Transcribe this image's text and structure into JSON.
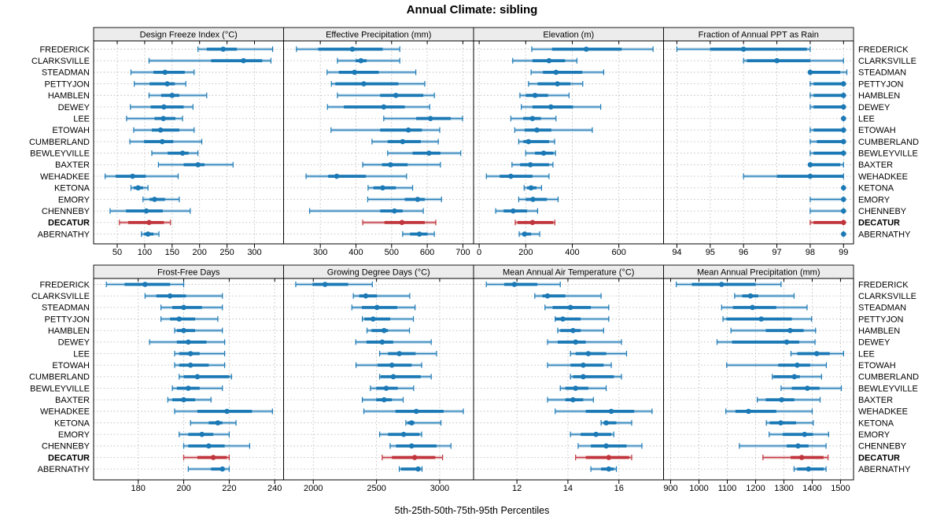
{
  "title": "Annual Climate: sibling",
  "caption": "5th-25th-50th-75th-95th Percentiles",
  "colors": {
    "series_blue": "#1b79b5",
    "series_blue_light": "rgba(27,121,181,0.33)",
    "highlight_red": "#c0353c",
    "highlight_red_light": "rgba(192,53,60,0.33)",
    "strip_bg": "#ececec",
    "panel_border": "#000000",
    "grid": "#bcbcbc",
    "text": "#000000"
  },
  "chart_data": {
    "type": "scatter",
    "subtype": "dot-and-whisker percentile plot (lattice style), 2 rows x 4 columns of panels",
    "percentiles": [
      5,
      25,
      50,
      75,
      95
    ],
    "legend_note": "thin line with caps + light band = 5th-95th, thick band = 25th-75th, dot = median",
    "sites": [
      "FREDERICK",
      "CLARKSVILLE",
      "STEADMAN",
      "PETTYJON",
      "HAMBLEN",
      "DEWEY",
      "LEE",
      "ETOWAH",
      "CUMBERLAND",
      "BEWLEYVILLE",
      "BAXTER",
      "WEHADKEE",
      "KETONA",
      "EMORY",
      "CHENNEBY",
      "DECATUR",
      "ABERNATHY"
    ],
    "highlight_site": "DECATUR",
    "panels": [
      {
        "title": "Design Freeze Index (°C)",
        "grid_row": 0,
        "grid_col": 0,
        "xlim": [
          7,
          353
        ],
        "ticks": [
          50,
          100,
          150,
          200,
          250,
          300
        ],
        "values": [
          [
            197,
            213,
            243,
            268,
            333
          ],
          [
            108,
            221,
            280,
            314,
            330
          ],
          [
            75,
            116,
            137,
            173,
            190
          ],
          [
            81,
            109,
            141,
            155,
            175
          ],
          [
            108,
            130,
            150,
            163,
            213
          ],
          [
            74,
            111,
            135,
            171,
            188
          ],
          [
            67,
            118,
            134,
            156,
            169
          ],
          [
            80,
            113,
            129,
            163,
            190
          ],
          [
            73,
            99,
            132,
            152,
            204
          ],
          [
            113,
            142,
            169,
            180,
            197
          ],
          [
            125,
            171,
            197,
            209,
            261
          ],
          [
            28,
            47,
            78,
            102,
            161
          ],
          [
            75,
            80,
            88,
            97,
            106
          ],
          [
            97,
            109,
            118,
            137,
            163
          ],
          [
            37,
            66,
            103,
            133,
            183
          ],
          [
            54,
            70,
            108,
            135,
            147
          ],
          [
            94,
            99,
            106,
            116,
            126
          ]
        ]
      },
      {
        "title": "Effective Precipitation (mm)",
        "grid_row": 0,
        "grid_col": 1,
        "xlim": [
          197,
          730
        ],
        "ticks": [
          300,
          400,
          500,
          600,
          700
        ],
        "values": [
          [
            233,
            294,
            390,
            475,
            523
          ],
          [
            348,
            399,
            414,
            430,
            523
          ],
          [
            319,
            352,
            396,
            464,
            568
          ],
          [
            331,
            342,
            422,
            519,
            593
          ],
          [
            348,
            468,
            512,
            589,
            620
          ],
          [
            320,
            366,
            478,
            537,
            607
          ],
          [
            478,
            569,
            609,
            666,
            699
          ],
          [
            330,
            468,
            547,
            585,
            635
          ],
          [
            445,
            489,
            531,
            582,
            631
          ],
          [
            489,
            559,
            605,
            637,
            694
          ],
          [
            419,
            473,
            497,
            545,
            637
          ],
          [
            260,
            322,
            346,
            428,
            542
          ],
          [
            434,
            449,
            475,
            512,
            559
          ],
          [
            433,
            537,
            573,
            593,
            640
          ],
          [
            270,
            468,
            508,
            531,
            589
          ],
          [
            419,
            480,
            529,
            593,
            624
          ],
          [
            531,
            552,
            578,
            601,
            620
          ]
        ]
      },
      {
        "title": "Elevation (m)",
        "grid_row": 0,
        "grid_col": 2,
        "xlim": [
          -24,
          792
        ],
        "ticks": [
          0,
          200,
          400,
          600
        ],
        "values": [
          [
            226,
            313,
            460,
            612,
            747
          ],
          [
            144,
            229,
            300,
            369,
            420
          ],
          [
            223,
            274,
            330,
            443,
            535
          ],
          [
            212,
            251,
            336,
            392,
            445
          ],
          [
            175,
            200,
            240,
            296,
            386
          ],
          [
            181,
            229,
            308,
            403,
            522
          ],
          [
            136,
            189,
            229,
            265,
            330
          ],
          [
            153,
            195,
            248,
            310,
            486
          ],
          [
            170,
            190,
            212,
            300,
            324
          ],
          [
            200,
            240,
            277,
            319,
            328
          ],
          [
            141,
            176,
            220,
            300,
            317
          ],
          [
            31,
            88,
            136,
            229,
            300
          ],
          [
            193,
            206,
            223,
            246,
            268
          ],
          [
            170,
            200,
            231,
            291,
            339
          ],
          [
            71,
            105,
            146,
            206,
            251
          ],
          [
            155,
            165,
            229,
            318,
            325
          ],
          [
            172,
            187,
            195,
            223,
            260
          ]
        ]
      },
      {
        "title": "Fraction of Annual PPT as Rain",
        "grid_row": 0,
        "grid_col": 3,
        "xlim": [
          93.6,
          99.3
        ],
        "ticks": [
          94,
          95,
          96,
          97,
          98,
          99
        ],
        "values": [
          [
            94.0,
            95.0,
            96.0,
            97.9,
            98.0
          ],
          [
            96.0,
            96.1,
            97.0,
            98.0,
            99.0
          ],
          [
            98.0,
            98.0,
            98.0,
            98.9,
            99.1
          ],
          [
            98.0,
            98.1,
            99.0,
            99.0,
            99.0
          ],
          [
            98.0,
            98.1,
            99.0,
            99.0,
            99.0
          ],
          [
            98.0,
            98.1,
            99.0,
            99.0,
            99.0
          ],
          [
            99.0,
            99.0,
            99.0,
            99.0,
            99.0
          ],
          [
            98.0,
            98.1,
            99.0,
            99.0,
            99.0
          ],
          [
            98.0,
            98.2,
            99.0,
            99.0,
            99.0
          ],
          [
            98.0,
            98.1,
            99.0,
            99.0,
            99.0
          ],
          [
            98.0,
            98.0,
            98.0,
            98.9,
            99.0
          ],
          [
            96.0,
            97.0,
            98.0,
            99.0,
            99.0
          ],
          [
            99.0,
            99.0,
            99.0,
            99.0,
            99.0
          ],
          [
            98.0,
            99.0,
            99.0,
            99.0,
            99.0
          ],
          [
            98.0,
            99.0,
            99.0,
            99.0,
            99.0
          ],
          [
            98.0,
            98.1,
            99.0,
            99.0,
            99.0
          ],
          [
            99.0,
            99.0,
            99.0,
            99.0,
            99.0
          ]
        ]
      },
      {
        "title": "Frost-Free Days",
        "grid_row": 1,
        "grid_col": 0,
        "xlim": [
          160.4,
          243.9
        ],
        "ticks": [
          180,
          200,
          220,
          240
        ],
        "values": [
          [
            166,
            174,
            183,
            194,
            200
          ],
          [
            183,
            188,
            194,
            201,
            217
          ],
          [
            190,
            195,
            200,
            208,
            217
          ],
          [
            190,
            194,
            198,
            205,
            215
          ],
          [
            196,
            197,
            200,
            205,
            217
          ],
          [
            185,
            197,
            202,
            210,
            218
          ],
          [
            196,
            198,
            203,
            207,
            218
          ],
          [
            196,
            198,
            203,
            211,
            218
          ],
          [
            198,
            200,
            206,
            220,
            221
          ],
          [
            195,
            197,
            202,
            207,
            217
          ],
          [
            193,
            195,
            200,
            205,
            212
          ],
          [
            196,
            206,
            219,
            230,
            239
          ],
          [
            203,
            211,
            215,
            217,
            223
          ],
          [
            198,
            202,
            208,
            213,
            220
          ],
          [
            200,
            202,
            211,
            218,
            229
          ],
          [
            200,
            206,
            213,
            219,
            220
          ],
          [
            202,
            212,
            217,
            218,
            220
          ]
        ]
      },
      {
        "title": "Growing Degree Days (°C)",
        "grid_row": 1,
        "grid_col": 1,
        "xlim": [
          1765,
          3268
        ],
        "ticks": [
          2000,
          2500,
          3000
        ],
        "values": [
          [
            1861,
            1994,
            2093,
            2276,
            2467
          ],
          [
            2317,
            2363,
            2415,
            2504,
            2763
          ],
          [
            2305,
            2384,
            2504,
            2664,
            2805
          ],
          [
            2388,
            2404,
            2473,
            2608,
            2792
          ],
          [
            2425,
            2460,
            2560,
            2591,
            2761
          ],
          [
            2336,
            2421,
            2545,
            2632,
            2933
          ],
          [
            2525,
            2591,
            2680,
            2809,
            2975
          ],
          [
            2338,
            2508,
            2622,
            2778,
            2857
          ],
          [
            2525,
            2533,
            2633,
            2850,
            2933
          ],
          [
            2452,
            2498,
            2577,
            2668,
            2794
          ],
          [
            2388,
            2498,
            2560,
            2622,
            2711
          ],
          [
            2400,
            2650,
            2815,
            3031,
            3187
          ],
          [
            2732,
            2745,
            2778,
            2800,
            3010
          ],
          [
            2525,
            2591,
            2715,
            2840,
            2857
          ],
          [
            2608,
            2654,
            2778,
            2975,
            3089
          ],
          [
            2545,
            2622,
            2802,
            2965,
            3023
          ],
          [
            2680,
            2694,
            2829,
            2848,
            2860
          ]
        ]
      },
      {
        "title": "Mean Annual Air Temperature (°C)",
        "grid_row": 1,
        "grid_col": 2,
        "xlim": [
          10.3,
          17.75
        ],
        "ticks": [
          12,
          14,
          16
        ],
        "values": [
          [
            10.8,
            11.5,
            11.9,
            12.8,
            13.7
          ],
          [
            12.7,
            13.0,
            13.2,
            13.9,
            15.3
          ],
          [
            13.1,
            13.4,
            14.1,
            14.9,
            15.6
          ],
          [
            13.5,
            13.5,
            13.8,
            14.5,
            15.6
          ],
          [
            13.6,
            13.7,
            14.2,
            14.5,
            15.4
          ],
          [
            13.2,
            13.6,
            14.3,
            14.7,
            16.1
          ],
          [
            14.1,
            14.3,
            14.8,
            15.5,
            16.3
          ],
          [
            13.2,
            14.1,
            14.6,
            15.4,
            15.7
          ],
          [
            14.1,
            14.2,
            14.6,
            15.8,
            16.1
          ],
          [
            13.7,
            13.9,
            14.3,
            14.8,
            15.5
          ],
          [
            13.2,
            13.9,
            14.2,
            14.6,
            15.0
          ],
          [
            13.5,
            14.7,
            15.7,
            16.6,
            17.3
          ],
          [
            15.3,
            15.4,
            15.5,
            15.9,
            16.5
          ],
          [
            14.1,
            14.5,
            15.1,
            15.7,
            15.8
          ],
          [
            14.4,
            14.9,
            15.5,
            16.3,
            16.9
          ],
          [
            14.3,
            14.7,
            15.6,
            16.4,
            16.5
          ],
          [
            14.9,
            15.3,
            15.6,
            15.8,
            15.9
          ]
        ]
      },
      {
        "title": "Mean Annual Precipitation (mm)",
        "grid_row": 1,
        "grid_col": 3,
        "xlim": [
          875,
          1546
        ],
        "ticks": [
          900,
          1000,
          1100,
          1200,
          1300,
          1400,
          1500
        ],
        "values": [
          [
            920,
            975,
            1080,
            1200,
            1290
          ],
          [
            1126,
            1153,
            1182,
            1209,
            1336
          ],
          [
            1080,
            1120,
            1189,
            1273,
            1382
          ],
          [
            1085,
            1097,
            1220,
            1328,
            1398
          ],
          [
            1113,
            1236,
            1322,
            1370,
            1412
          ],
          [
            1064,
            1117,
            1310,
            1354,
            1410
          ],
          [
            1325,
            1347,
            1416,
            1462,
            1511
          ],
          [
            1098,
            1280,
            1347,
            1393,
            1450
          ],
          [
            1259,
            1263,
            1337,
            1356,
            1433
          ],
          [
            1290,
            1328,
            1383,
            1426,
            1503
          ],
          [
            1206,
            1236,
            1292,
            1337,
            1428
          ],
          [
            1095,
            1129,
            1175,
            1273,
            1400
          ],
          [
            1238,
            1250,
            1289,
            1343,
            1404
          ],
          [
            1248,
            1296,
            1373,
            1403,
            1458
          ],
          [
            1143,
            1310,
            1350,
            1387,
            1449
          ],
          [
            1226,
            1324,
            1363,
            1440,
            1456
          ],
          [
            1336,
            1347,
            1387,
            1441,
            1449
          ]
        ]
      }
    ]
  }
}
